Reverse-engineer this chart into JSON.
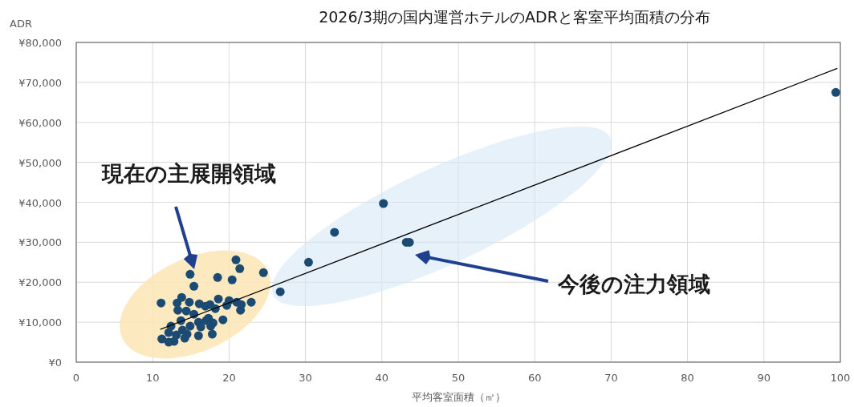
{
  "chart_data": {
    "type": "scatter",
    "title": "2026/3期の国内運営ホテルのADRと客室平均面積の分布",
    "xlabel": "平均客室面積（㎡）",
    "ylabel": "ADR",
    "xlim": [
      0,
      100
    ],
    "xticks": [
      0,
      10,
      20,
      30,
      40,
      50,
      60,
      70,
      80,
      90,
      100
    ],
    "ylim": [
      0,
      80000
    ],
    "yticks": [
      {
        "value": 0,
        "label": "¥0"
      },
      {
        "value": 10000,
        "label": "¥10,000"
      },
      {
        "value": 20000,
        "label": "¥20,000"
      },
      {
        "value": 30000,
        "label": "¥30,000"
      },
      {
        "value": 40000,
        "label": "¥40,000"
      },
      {
        "value": 50000,
        "label": "¥50,000"
      },
      {
        "value": 60000,
        "label": "¥60,000"
      },
      {
        "value": 70000,
        "label": "¥70,000"
      },
      {
        "value": 80000,
        "label": "¥80,000"
      }
    ],
    "grid": true,
    "marker": "circle",
    "annotations": [
      "現在の主展開領域",
      "今後の注力領域"
    ],
    "series": [
      {
        "type": "scatter",
        "color": "#1b4b72",
        "x": [
          99.4,
          40.2,
          33.8,
          43.2,
          43.6,
          30.4,
          26.7,
          24.5,
          20.9,
          21.4,
          20.4,
          18.5,
          14.9,
          15.4,
          11.1,
          13.2,
          13.8,
          14.8,
          16.1,
          17.5,
          18.6,
          20.0,
          21.0,
          21.6,
          22.9,
          21.5,
          19.7,
          18.2,
          16.9,
          13.3,
          14.4,
          15.4,
          17.3,
          19.2,
          17.9,
          17.0,
          16.0,
          13.7,
          12.4,
          14.9,
          16.3,
          17.6,
          13.9,
          12.1,
          13.1,
          14.5,
          16.0,
          17.8,
          11.2,
          12.1,
          12.8,
          14.2
        ],
        "values": [
          67500,
          39700,
          32500,
          30000,
          30000,
          25000,
          17600,
          22400,
          25600,
          23400,
          20600,
          21200,
          22000,
          19000,
          14800,
          14800,
          16200,
          15000,
          14600,
          14400,
          15800,
          15400,
          15000,
          14400,
          15000,
          13000,
          14200,
          13400,
          14000,
          13000,
          12800,
          12000,
          11000,
          10600,
          9800,
          10400,
          10000,
          10400,
          9000,
          9000,
          8800,
          9000,
          8000,
          7400,
          6800,
          7000,
          6600,
          7000,
          5800,
          5000,
          5200,
          6000
        ]
      },
      {
        "type": "line",
        "color": "#000000",
        "marker": "none",
        "x": [
          11.0,
          99.6
        ],
        "values": [
          8200,
          73500
        ]
      }
    ]
  }
}
